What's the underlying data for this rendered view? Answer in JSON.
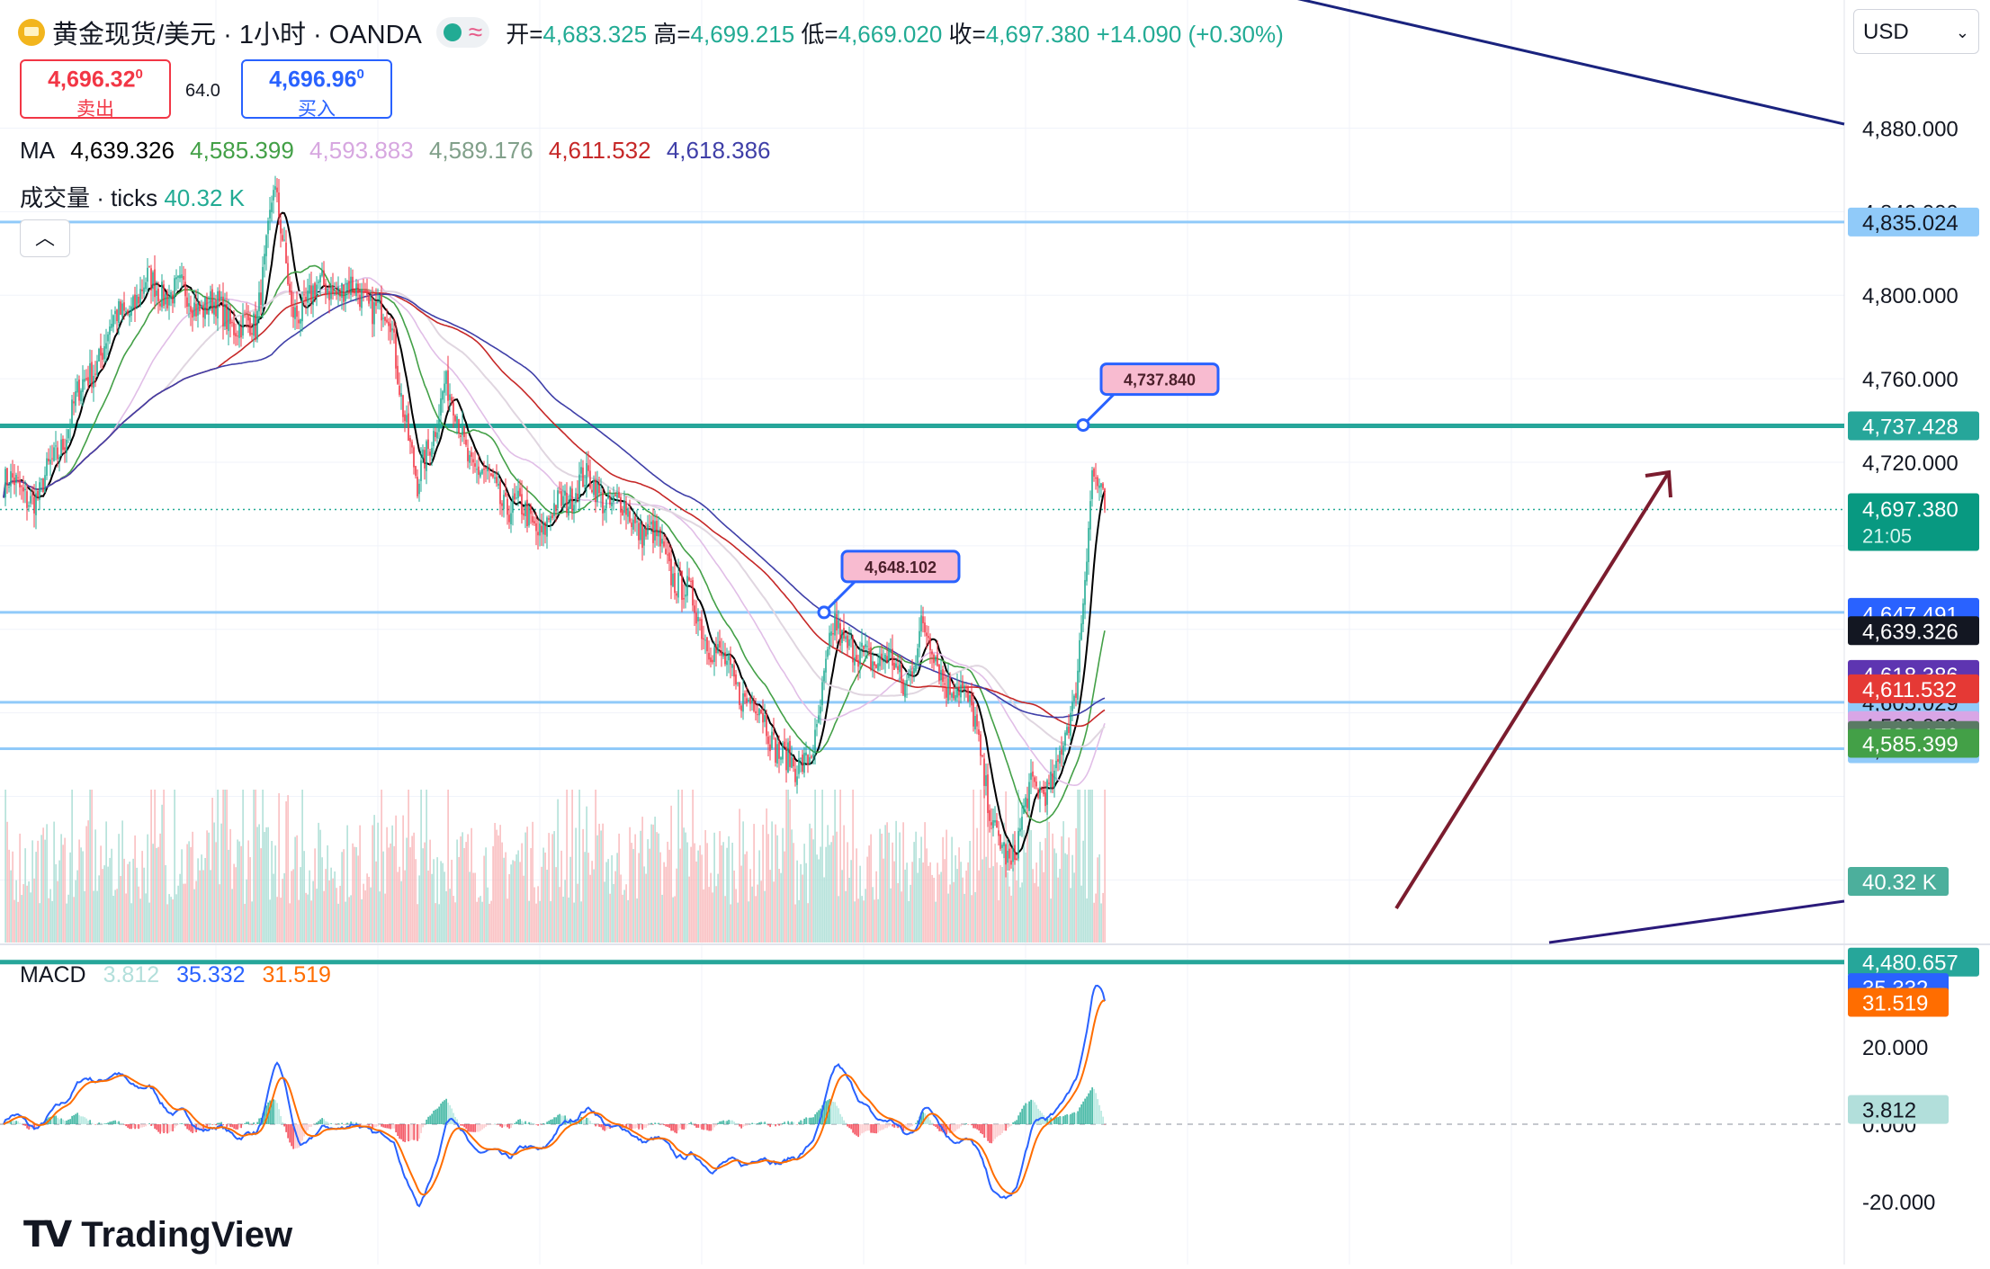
{
  "header": {
    "symbol": "黄金现货/美元 · 1小时 · OANDA",
    "icon": "gold-coin-icon",
    "ohlc": {
      "open_label": "开=",
      "open": "4,683.325",
      "high_label": "高=",
      "high": "4,699.215",
      "low_label": "低=",
      "low": "4,669.020",
      "close_label": "收=",
      "close": "4,697.380",
      "change": "+14.090 (+0.30%)"
    },
    "sell": {
      "price": "4,696.32",
      "sup": "0",
      "label": "卖出"
    },
    "buy": {
      "price": "4,696.96",
      "sup": "0",
      "label": "买入"
    },
    "spread": "64.0",
    "currency": "USD"
  },
  "indicators": {
    "ma_label": "MA",
    "ma_values": [
      "4,639.326",
      "4,585.399",
      "4,593.883",
      "4,589.176",
      "4,611.532",
      "4,618.386"
    ],
    "volume_label": "成交量 · ticks",
    "volume_value": "40.32 K",
    "macd_label": "MACD",
    "macd_values": [
      "3.812",
      "35.332",
      "31.519"
    ]
  },
  "colors": {
    "up": "#22ab94",
    "down": "#f23645",
    "ma": [
      "#000000",
      "#43a047",
      "#e1bee7",
      "#81a08a",
      "#c62828",
      "#3f3fa8"
    ],
    "macd": "#2962ff",
    "signal": "#ff6d00",
    "level": "#26a69a",
    "level_light": "#90caf9",
    "trend": "#7b1c2e",
    "downtrend": "#1a237e"
  },
  "chart_data": {
    "type": "candlestick",
    "symbol": "XAU/USD",
    "interval": "1小时",
    "ylim": [
      4480,
      4890
    ],
    "y_ticks": [
      "4,880.000",
      "4,840.000",
      "4,800.000",
      "4,760.000",
      "4,720.000"
    ],
    "anchors": [
      [
        0,
        4710
      ],
      [
        20,
        4703
      ],
      [
        40,
        4748
      ],
      [
        60,
        4785
      ],
      [
        80,
        4805
      ],
      [
        100,
        4800
      ],
      [
        120,
        4792
      ],
      [
        140,
        4782
      ],
      [
        150,
        4855
      ],
      [
        160,
        4792
      ],
      [
        180,
        4805
      ],
      [
        200,
        4800
      ],
      [
        215,
        4787
      ],
      [
        230,
        4706
      ],
      [
        245,
        4758
      ],
      [
        260,
        4720
      ],
      [
        280,
        4700
      ],
      [
        300,
        4688
      ],
      [
        320,
        4712
      ],
      [
        340,
        4700
      ],
      [
        360,
        4685
      ],
      [
        380,
        4656
      ],
      [
        400,
        4622
      ],
      [
        420,
        4600
      ],
      [
        440,
        4570
      ],
      [
        452,
        4590
      ],
      [
        462,
        4645
      ],
      [
        475,
        4625
      ],
      [
        490,
        4628
      ],
      [
        500,
        4612
      ],
      [
        510,
        4640
      ],
      [
        525,
        4615
      ],
      [
        540,
        4600
      ],
      [
        550,
        4540
      ],
      [
        560,
        4530
      ],
      [
        570,
        4560
      ],
      [
        585,
        4570
      ],
      [
        595,
        4605
      ],
      [
        605,
        4712
      ],
      [
        612,
        4697
      ]
    ],
    "horizontal_levels": [
      {
        "label": "4,835.024",
        "value": 4835.024
      },
      {
        "label": "4,737.428",
        "value": 4737.428
      },
      {
        "label": "4,648.102",
        "value": 4648.102
      },
      {
        "label": "4,605.029",
        "value": 4605.029
      },
      {
        "label": "4,582.791",
        "value": 4582.791
      },
      {
        "label": "4,480.657",
        "value": 4480.657
      }
    ],
    "price_labels": [
      {
        "label": "4,647.491",
        "value": 4647.491
      },
      {
        "label": "4,639.326",
        "value": 4639.326
      },
      {
        "label": "4,618.386",
        "value": 4618.386
      },
      {
        "label": "4,611.532",
        "value": 4611.532
      },
      {
        "label": "4,593.883",
        "value": 4593.883
      },
      {
        "label": "4,589.176",
        "value": 4589.176
      },
      {
        "label": "4,585.399",
        "value": 4585.399
      }
    ],
    "current": {
      "price": "4,697.380",
      "value": 4697.38,
      "countdown": "21:05"
    },
    "callouts": [
      {
        "label": "4,737.840",
        "value": 4737.84,
        "bar": 600
      },
      {
        "label": "4,648.102",
        "value": 4648.102,
        "bar": 456
      }
    ],
    "volume": {
      "last": "40.32 K"
    },
    "macd": {
      "ylim": [
        -32,
        62
      ],
      "y_ticks": [
        "20.000",
        "0.000",
        "-20.000"
      ],
      "macd": "35.332",
      "signal": "31.519",
      "hist": "3.812",
      "macd_value": 35.332,
      "signal_value": 31.519,
      "hist_value": 3.812
    }
  },
  "branding": {
    "logo": "TradingView"
  }
}
